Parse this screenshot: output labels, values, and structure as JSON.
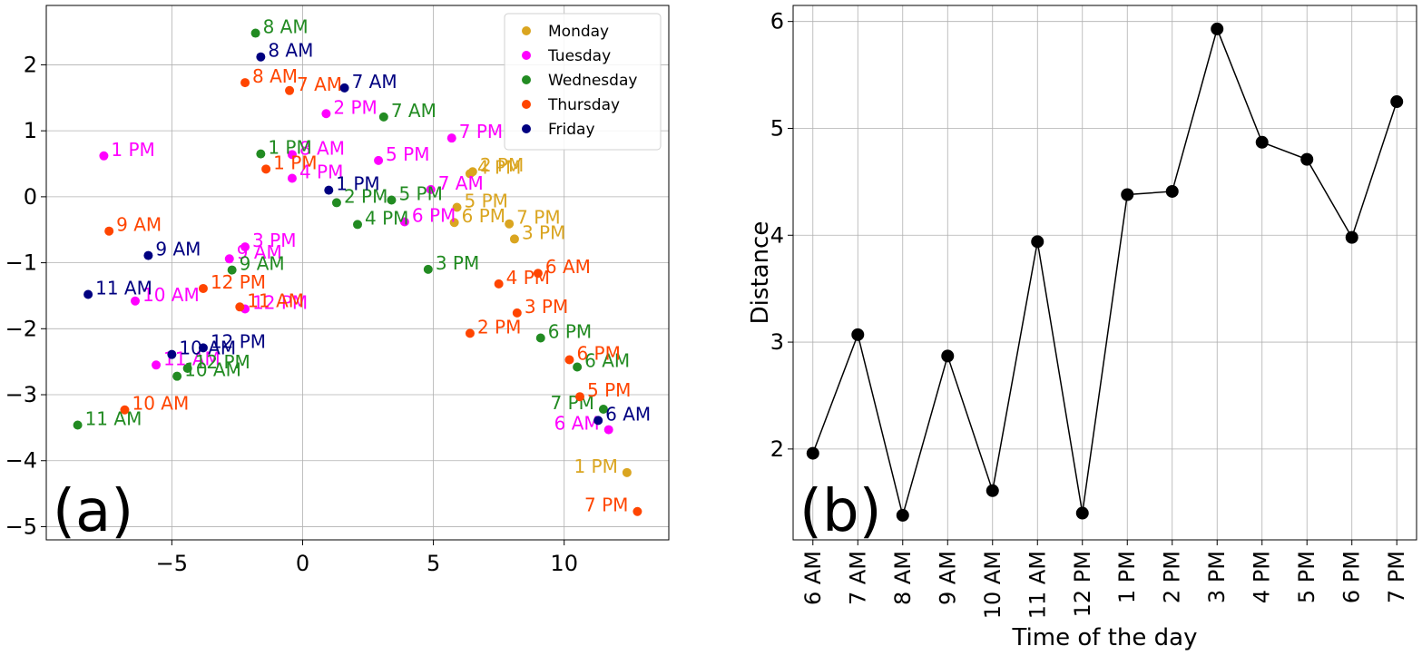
{
  "chart_data": [
    {
      "type": "scatter",
      "panel_label": "(a)",
      "xlim": [
        -9.8,
        14
      ],
      "ylim": [
        -5.2,
        2.9
      ],
      "xticks": [
        -5,
        0,
        5,
        10
      ],
      "yticks": [
        2,
        1,
        0,
        -1,
        -2,
        -3,
        -4,
        -5
      ],
      "xtick_labels": [
        "−5",
        "0",
        "5",
        "10"
      ],
      "ytick_labels": [
        "2",
        "1",
        "0",
        "−1",
        "−2",
        "−3",
        "−4",
        "−5"
      ],
      "grid": true,
      "legend_position": "top-right",
      "series": [
        {
          "name": "Monday",
          "color": "#daa520",
          "points": [
            {
              "label": "1 PM",
              "x": 12.4,
              "y": -4.18
            },
            {
              "label": "2 PM",
              "x": 6.5,
              "y": 0.38
            },
            {
              "label": "5 PM",
              "x": 5.9,
              "y": -0.16
            },
            {
              "label": "6 PM",
              "x": 5.8,
              "y": -0.39
            },
            {
              "label": "7 PM",
              "x": 7.9,
              "y": -0.41
            },
            {
              "label": "3 PM",
              "x": 8.1,
              "y": -0.64
            },
            {
              "label": "4 PM",
              "x": 6.4,
              "y": 0.35
            }
          ]
        },
        {
          "name": "Tuesday",
          "color": "#ff00ff",
          "points": [
            {
              "label": "1 PM",
              "x": -7.6,
              "y": 0.62
            },
            {
              "label": "2 PM",
              "x": 0.9,
              "y": 1.26
            },
            {
              "label": "8 AM",
              "x": -0.4,
              "y": 0.64
            },
            {
              "label": "4 PM",
              "x": -0.4,
              "y": 0.28
            },
            {
              "label": "5 PM",
              "x": 2.9,
              "y": 0.55
            },
            {
              "label": "7 PM",
              "x": 5.7,
              "y": 0.89
            },
            {
              "label": "7 AM",
              "x": 4.9,
              "y": 0.11
            },
            {
              "label": "6 PM",
              "x": 3.9,
              "y": -0.38
            },
            {
              "label": "3 PM",
              "x": -2.2,
              "y": -0.76
            },
            {
              "label": "9 AM",
              "x": -2.8,
              "y": -0.94
            },
            {
              "label": "10 AM",
              "x": -6.4,
              "y": -1.58
            },
            {
              "label": "12 PM",
              "x": -2.2,
              "y": -1.7
            },
            {
              "label": "11 AM",
              "x": -5.6,
              "y": -2.55
            },
            {
              "label": "6 AM",
              "x": 11.7,
              "y": -3.53
            }
          ]
        },
        {
          "name": "Wednesday",
          "color": "#228b22",
          "points": [
            {
              "label": "8 AM",
              "x": -1.8,
              "y": 2.48
            },
            {
              "label": "7 AM",
              "x": 3.1,
              "y": 1.21
            },
            {
              "label": "1 PM",
              "x": -1.6,
              "y": 0.65
            },
            {
              "label": "2 PM",
              "x": 1.3,
              "y": -0.09
            },
            {
              "label": "5 PM",
              "x": 3.4,
              "y": -0.05
            },
            {
              "label": "4 PM",
              "x": 2.1,
              "y": -0.42
            },
            {
              "label": "9 AM",
              "x": -2.7,
              "y": -1.11
            },
            {
              "label": "3 PM",
              "x": 4.8,
              "y": -1.1
            },
            {
              "label": "6 PM",
              "x": 9.1,
              "y": -2.14
            },
            {
              "label": "6 AM",
              "x": 10.5,
              "y": -2.58
            },
            {
              "label": "12 PM",
              "x": -4.4,
              "y": -2.6
            },
            {
              "label": "10 AM",
              "x": -4.8,
              "y": -2.72
            },
            {
              "label": "11 AM",
              "x": -8.6,
              "y": -3.46
            },
            {
              "label": "7 PM",
              "x": 11.5,
              "y": -3.22
            }
          ]
        },
        {
          "name": "Thursday",
          "color": "#ff4500",
          "points": [
            {
              "label": "8 AM",
              "x": -2.2,
              "y": 1.73
            },
            {
              "label": "7 AM",
              "x": -0.5,
              "y": 1.61
            },
            {
              "label": "1 PM",
              "x": -1.4,
              "y": 0.42
            },
            {
              "label": "9 AM",
              "x": -7.4,
              "y": -0.52
            },
            {
              "label": "12 PM",
              "x": -3.8,
              "y": -1.39
            },
            {
              "label": "11 AM",
              "x": -2.4,
              "y": -1.67
            },
            {
              "label": "4 PM",
              "x": 7.5,
              "y": -1.32
            },
            {
              "label": "6 AM",
              "x": 9.0,
              "y": -1.16
            },
            {
              "label": "3 PM",
              "x": 8.2,
              "y": -1.76
            },
            {
              "label": "2 PM",
              "x": 6.4,
              "y": -2.07
            },
            {
              "label": "6 PM",
              "x": 10.2,
              "y": -2.47
            },
            {
              "label": "5 PM",
              "x": 10.6,
              "y": -3.03
            },
            {
              "label": "10 AM",
              "x": -6.8,
              "y": -3.23
            },
            {
              "label": "7 PM",
              "x": 12.8,
              "y": -4.77
            }
          ]
        },
        {
          "name": "Friday",
          "color": "#000080",
          "points": [
            {
              "label": "8 AM",
              "x": -1.6,
              "y": 2.12
            },
            {
              "label": "7 AM",
              "x": 1.6,
              "y": 1.65
            },
            {
              "label": "1 PM",
              "x": 1.0,
              "y": 0.1
            },
            {
              "label": "9 AM",
              "x": -5.9,
              "y": -0.89
            },
            {
              "label": "11 AM",
              "x": -8.2,
              "y": -1.48
            },
            {
              "label": "12 PM",
              "x": -3.8,
              "y": -2.29
            },
            {
              "label": "10 AM",
              "x": -5.0,
              "y": -2.39
            },
            {
              "label": "6 AM",
              "x": 11.3,
              "y": -3.39
            }
          ]
        }
      ]
    },
    {
      "type": "line",
      "panel_label": "(b)",
      "xlabel": "Time of the day",
      "ylabel": "Distance",
      "ylim": [
        1.15,
        6.15
      ],
      "yticks": [
        2,
        3,
        4,
        5,
        6
      ],
      "ytick_labels": [
        "2",
        "3",
        "4",
        "5",
        "6"
      ],
      "grid": true,
      "color": "#000000",
      "categories": [
        "6 AM",
        "7 AM",
        "8 AM",
        "9 AM",
        "10 AM",
        "11 AM",
        "12 PM",
        "1 PM",
        "2 PM",
        "3 PM",
        "4 PM",
        "5 PM",
        "6 PM",
        "7 PM"
      ],
      "values": [
        1.96,
        3.07,
        1.38,
        2.87,
        1.61,
        3.94,
        1.4,
        4.38,
        4.41,
        5.93,
        4.87,
        4.71,
        3.98,
        5.25
      ]
    }
  ]
}
